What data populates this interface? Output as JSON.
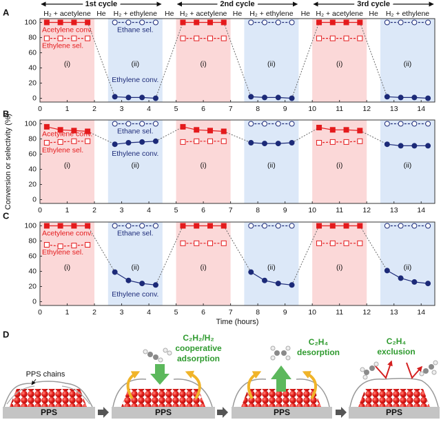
{
  "header": {
    "cycles": [
      "1st cycle",
      "2nd cycle",
      "3rd cycle"
    ],
    "gases": [
      "H₂ + acetylene",
      "He",
      "H₂ + ethylene",
      "He",
      "H₂ + acetylene",
      "He",
      "H₂ + ethylene",
      "He",
      "H₂ + acetylene",
      "He",
      "H₂ + ethylene"
    ]
  },
  "chart_data": [
    {
      "type": "line",
      "panel": "A",
      "x": [
        0.25,
        0.75,
        1.25,
        1.75,
        2.75,
        3.25,
        3.75,
        4.25,
        5.25,
        5.75,
        6.25,
        6.75,
        7.75,
        8.25,
        8.75,
        9.25,
        10.25,
        10.75,
        11.25,
        11.75,
        12.75,
        13.25,
        13.75,
        14.25
      ],
      "xlim": [
        0,
        14.5
      ],
      "xticks": [
        0,
        1,
        2,
        3,
        4,
        5,
        6,
        7,
        8,
        9,
        10,
        11,
        12,
        13,
        14
      ],
      "ylim": [
        -5,
        105
      ],
      "yticks": [
        0,
        20,
        40,
        60,
        80,
        100
      ],
      "phases": [
        {
          "label": "(i)",
          "start": 0,
          "end": 2,
          "color": "#fbd8d8"
        },
        {
          "label": "(ii)",
          "start": 2.5,
          "end": 4.5,
          "color": "#dce8f8"
        },
        {
          "label": "(i)",
          "start": 5,
          "end": 7,
          "color": "#fbd8d8"
        },
        {
          "label": "(ii)",
          "start": 7.5,
          "end": 9.5,
          "color": "#dce8f8"
        },
        {
          "label": "(i)",
          "start": 10,
          "end": 12,
          "color": "#fbd8d8"
        },
        {
          "label": "(ii)",
          "start": 12.5,
          "end": 14.5,
          "color": "#dce8f8"
        }
      ],
      "series": [
        {
          "name": "Acetylene conv.",
          "color": "#e41a1c",
          "marker": "square",
          "filled": true,
          "dashed": false,
          "connect": true,
          "values": [
            100,
            100,
            100,
            100,
            null,
            null,
            null,
            null,
            100,
            100,
            100,
            100,
            null,
            null,
            null,
            null,
            100,
            100,
            100,
            100,
            null,
            null,
            null,
            null
          ]
        },
        {
          "name": "Ethylene sel.",
          "color": "#e41a1c",
          "marker": "square",
          "filled": false,
          "dashed": true,
          "connect": false,
          "values": [
            79,
            79,
            79,
            79,
            null,
            null,
            null,
            null,
            79,
            79,
            79,
            79,
            null,
            null,
            null,
            null,
            79,
            79,
            79,
            79,
            null,
            null,
            null,
            null
          ]
        },
        {
          "name": "Ethane sel.",
          "color": "#1c2a78",
          "marker": "circle",
          "filled": false,
          "dashed": true,
          "connect": false,
          "values": [
            null,
            null,
            null,
            null,
            100,
            100,
            100,
            100,
            null,
            null,
            null,
            null,
            100,
            100,
            100,
            100,
            null,
            null,
            null,
            null,
            100,
            100,
            100,
            100
          ]
        },
        {
          "name": "Ethylene conv.",
          "color": "#1c2a78",
          "marker": "circle",
          "filled": true,
          "dashed": false,
          "connect": true,
          "values": [
            null,
            null,
            null,
            null,
            2,
            1,
            1,
            0,
            null,
            null,
            null,
            null,
            2,
            1,
            1,
            0,
            null,
            null,
            null,
            null,
            2,
            1,
            1,
            0
          ]
        }
      ]
    },
    {
      "type": "line",
      "panel": "B",
      "y_label": "Conversion or selectivity (%)",
      "x": [
        0.25,
        0.75,
        1.25,
        1.75,
        2.75,
        3.25,
        3.75,
        4.25,
        5.25,
        5.75,
        6.25,
        6.75,
        7.75,
        8.25,
        8.75,
        9.25,
        10.25,
        10.75,
        11.25,
        11.75,
        12.75,
        13.25,
        13.75,
        14.25
      ],
      "xlim": [
        0,
        14.5
      ],
      "xticks": [
        0,
        1,
        2,
        3,
        4,
        5,
        6,
        7,
        8,
        9,
        10,
        11,
        12,
        13,
        14
      ],
      "ylim": [
        -5,
        105
      ],
      "yticks": [
        0,
        20,
        40,
        60,
        80,
        100
      ],
      "phases": [
        {
          "label": "(i)",
          "start": 0,
          "end": 2,
          "color": "#fbd8d8"
        },
        {
          "label": "(ii)",
          "start": 2.5,
          "end": 4.5,
          "color": "#dce8f8"
        },
        {
          "label": "(i)",
          "start": 5,
          "end": 7,
          "color": "#fbd8d8"
        },
        {
          "label": "(ii)",
          "start": 7.5,
          "end": 9.5,
          "color": "#dce8f8"
        },
        {
          "label": "(i)",
          "start": 10,
          "end": 12,
          "color": "#fbd8d8"
        },
        {
          "label": "(ii)",
          "start": 12.5,
          "end": 14.5,
          "color": "#dce8f8"
        }
      ],
      "series": [
        {
          "name": "Acetylene conv.",
          "color": "#e41a1c",
          "marker": "square",
          "filled": true,
          "dashed": false,
          "connect": true,
          "values": [
            96,
            92,
            91,
            90,
            null,
            null,
            null,
            null,
            96,
            92,
            91,
            90,
            null,
            null,
            null,
            null,
            95,
            92,
            92,
            91,
            null,
            null,
            null,
            null
          ]
        },
        {
          "name": "Ethylene sel.",
          "color": "#e41a1c",
          "marker": "square",
          "filled": false,
          "dashed": true,
          "connect": false,
          "values": [
            75,
            76,
            77,
            77,
            null,
            null,
            null,
            null,
            76,
            77,
            77,
            77,
            null,
            null,
            null,
            null,
            75,
            76,
            76,
            77,
            null,
            null,
            null,
            null
          ]
        },
        {
          "name": "Ethane sel.",
          "color": "#1c2a78",
          "marker": "circle",
          "filled": false,
          "dashed": true,
          "connect": false,
          "values": [
            null,
            null,
            null,
            null,
            100,
            100,
            100,
            100,
            null,
            null,
            null,
            null,
            100,
            100,
            100,
            100,
            null,
            null,
            null,
            null,
            100,
            100,
            100,
            100
          ]
        },
        {
          "name": "Ethylene conv.",
          "color": "#1c2a78",
          "marker": "circle",
          "filled": true,
          "dashed": false,
          "connect": true,
          "values": [
            null,
            null,
            null,
            null,
            73,
            75,
            76,
            77,
            null,
            null,
            null,
            null,
            75,
            74,
            74,
            75,
            null,
            null,
            null,
            null,
            73,
            71,
            71,
            71
          ]
        }
      ]
    },
    {
      "type": "line",
      "panel": "C",
      "x_label": "Time (hours)",
      "x": [
        0.25,
        0.75,
        1.25,
        1.75,
        2.75,
        3.25,
        3.75,
        4.25,
        5.25,
        5.75,
        6.25,
        6.75,
        7.75,
        8.25,
        8.75,
        9.25,
        10.25,
        10.75,
        11.25,
        11.75,
        12.75,
        13.25,
        13.75,
        14.25
      ],
      "xlim": [
        0,
        14.5
      ],
      "xticks": [
        0,
        1,
        2,
        3,
        4,
        5,
        6,
        7,
        8,
        9,
        10,
        11,
        12,
        13,
        14
      ],
      "ylim": [
        -5,
        105
      ],
      "yticks": [
        0,
        20,
        40,
        60,
        80,
        100
      ],
      "phases": [
        {
          "label": "(i)",
          "start": 0,
          "end": 2,
          "color": "#fbd8d8"
        },
        {
          "label": "(ii)",
          "start": 2.5,
          "end": 4.5,
          "color": "#dce8f8"
        },
        {
          "label": "(i)",
          "start": 5,
          "end": 7,
          "color": "#fbd8d8"
        },
        {
          "label": "(ii)",
          "start": 7.5,
          "end": 9.5,
          "color": "#dce8f8"
        },
        {
          "label": "(i)",
          "start": 10,
          "end": 12,
          "color": "#fbd8d8"
        },
        {
          "label": "(ii)",
          "start": 12.5,
          "end": 14.5,
          "color": "#dce8f8"
        }
      ],
      "series": [
        {
          "name": "Acetylene conv.",
          "color": "#e41a1c",
          "marker": "square",
          "filled": true,
          "dashed": false,
          "connect": true,
          "values": [
            100,
            100,
            100,
            100,
            null,
            null,
            null,
            null,
            100,
            100,
            100,
            100,
            null,
            null,
            null,
            null,
            100,
            100,
            100,
            100,
            null,
            null,
            null,
            null
          ]
        },
        {
          "name": "Ethylene sel.",
          "color": "#e41a1c",
          "marker": "square",
          "filled": false,
          "dashed": true,
          "connect": false,
          "values": [
            75,
            73,
            74,
            75,
            null,
            null,
            null,
            null,
            77,
            77,
            77,
            77,
            null,
            null,
            null,
            null,
            77,
            77,
            77,
            77,
            null,
            null,
            null,
            null
          ]
        },
        {
          "name": "Ethane sel.",
          "color": "#1c2a78",
          "marker": "circle",
          "filled": false,
          "dashed": true,
          "connect": false,
          "values": [
            null,
            null,
            null,
            null,
            100,
            100,
            100,
            100,
            null,
            null,
            null,
            null,
            100,
            100,
            100,
            100,
            null,
            null,
            null,
            null,
            100,
            100,
            100,
            100
          ]
        },
        {
          "name": "Ethylene conv.",
          "color": "#1c2a78",
          "marker": "circle",
          "filled": true,
          "dashed": false,
          "connect": true,
          "values": [
            null,
            null,
            null,
            null,
            39,
            28,
            24,
            22,
            null,
            null,
            null,
            null,
            39,
            28,
            24,
            22,
            null,
            null,
            null,
            null,
            41,
            31,
            26,
            24
          ]
        }
      ]
    }
  ],
  "panel_d": {
    "label": "D",
    "chain_label": "PPS chains",
    "scenes": [
      {
        "substrate": "PPS"
      },
      {
        "substrate": "PPS",
        "caption": [
          "C₂H₂/H₂",
          "cooperative",
          "adsorption"
        ]
      },
      {
        "substrate": "PPS",
        "caption": [
          "C₂H₄",
          "desorption"
        ]
      },
      {
        "substrate": "PPS",
        "caption": [
          "C₂H₄",
          "exclusion"
        ]
      }
    ]
  }
}
